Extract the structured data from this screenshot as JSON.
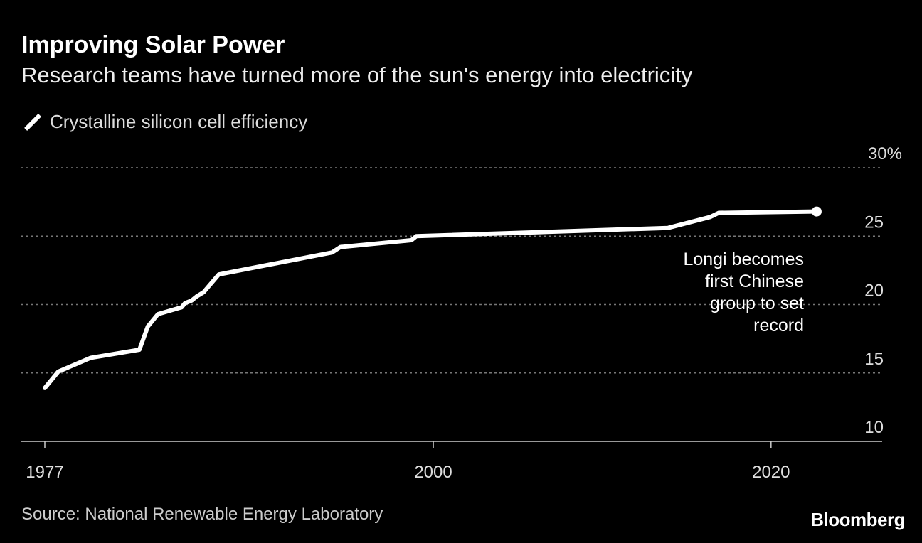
{
  "title": "Improving Solar Power",
  "subtitle": "Research teams have turned more of the sun's energy into electricity",
  "source": "Source: National Renewable Energy Laboratory",
  "logo": "Bloomberg",
  "chart_data": {
    "type": "line",
    "title": "Improving Solar Power",
    "subtitle": "Research teams have turned more of the sun's energy into electricity",
    "legend": {
      "position": "top-left",
      "entries": [
        "Crystalline silicon cell efficiency"
      ]
    },
    "xlim": [
      1977,
      2026
    ],
    "ylim": [
      10,
      30
    ],
    "x_ticks": [
      {
        "value": 1977,
        "label": "1977"
      },
      {
        "value": 2000,
        "label": "2000"
      },
      {
        "value": 2020,
        "label": "2020"
      }
    ],
    "y_ticks": [
      {
        "value": 30,
        "label": "30%"
      },
      {
        "value": 25,
        "label": "25"
      },
      {
        "value": 20,
        "label": "20"
      },
      {
        "value": 15,
        "label": "15"
      },
      {
        "value": 10,
        "label": "10"
      }
    ],
    "y_axis_side": "right",
    "grid": "horizontal dotted",
    "colors": {
      "background": "#000000",
      "line": "#ffffff",
      "grid": "#777777"
    },
    "series": [
      {
        "name": "Crystalline silicon cell efficiency",
        "x": [
          1977,
          1977.8,
          1979.7,
          1982.6,
          1983.1,
          1983.7,
          1985.1,
          1985.3,
          1985.7,
          1986.0,
          1986.4,
          1987.3,
          1994.0,
          1994.5,
          1998.7,
          1999.0,
          2013.9,
          2016.4,
          2016.9,
          2022.7
        ],
        "y": [
          13.9,
          15.1,
          16.1,
          16.7,
          18.4,
          19.3,
          19.8,
          20.1,
          20.3,
          20.6,
          20.9,
          22.2,
          23.8,
          24.2,
          24.7,
          25.0,
          25.6,
          26.4,
          26.7,
          26.8
        ]
      }
    ],
    "annotations": [
      {
        "x": 2022.7,
        "y": 26.8,
        "text": [
          "Longi becomes",
          "first Chinese",
          "group to set",
          "record"
        ]
      }
    ]
  }
}
